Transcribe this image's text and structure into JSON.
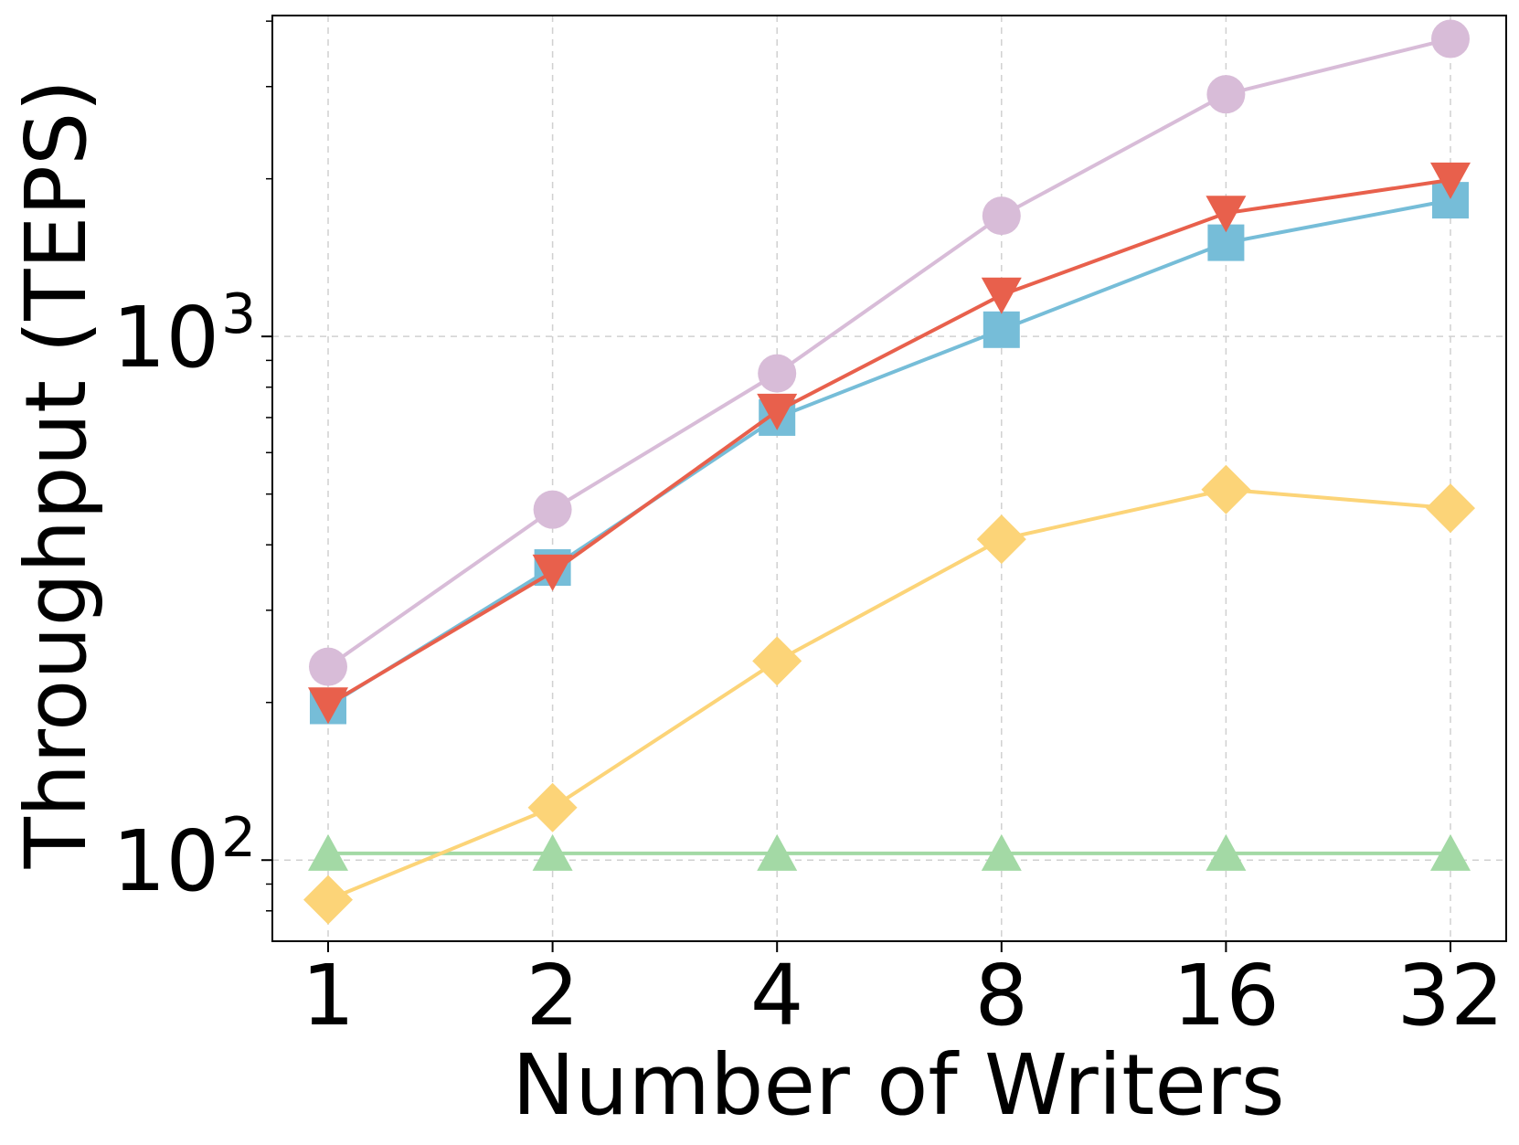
{
  "chart_data": {
    "type": "line",
    "title": "",
    "xlabel": "Number of Writers",
    "ylabel": "Throughput (TEPS)",
    "x_scale": "log2",
    "y_scale": "log10",
    "categories": [
      "1",
      "2",
      "4",
      "8",
      "16",
      "32"
    ],
    "x": [
      1,
      2,
      4,
      8,
      16,
      32
    ],
    "ylim": [
      70,
      4100
    ],
    "y_major_ticks": [
      {
        "value": 100,
        "base": "10",
        "exp": "2"
      },
      {
        "value": 1000,
        "base": "10",
        "exp": "3"
      }
    ],
    "y_minor_ticks": [
      80,
      90,
      200,
      300,
      400,
      500,
      600,
      700,
      800,
      900,
      2000,
      3000,
      4000
    ],
    "grid": true,
    "legend": "none",
    "series": [
      {
        "color": "#d8bcd8",
        "marker": "circle",
        "values": [
          234,
          467,
          850,
          1700,
          2900,
          3700
        ]
      },
      {
        "color": "#e8604c",
        "marker": "triangle-down",
        "values": [
          198,
          355,
          720,
          1200,
          1720,
          1990
        ]
      },
      {
        "color": "#76bdd8",
        "marker": "square",
        "values": [
          197,
          362,
          700,
          1030,
          1510,
          1820
        ]
      },
      {
        "color": "#fcd478",
        "marker": "diamond",
        "values": [
          84,
          126,
          240,
          410,
          510,
          470
        ]
      },
      {
        "color": "#a3d9a5",
        "marker": "triangle-up",
        "values": [
          103,
          103,
          103,
          103,
          103,
          103
        ]
      }
    ]
  }
}
